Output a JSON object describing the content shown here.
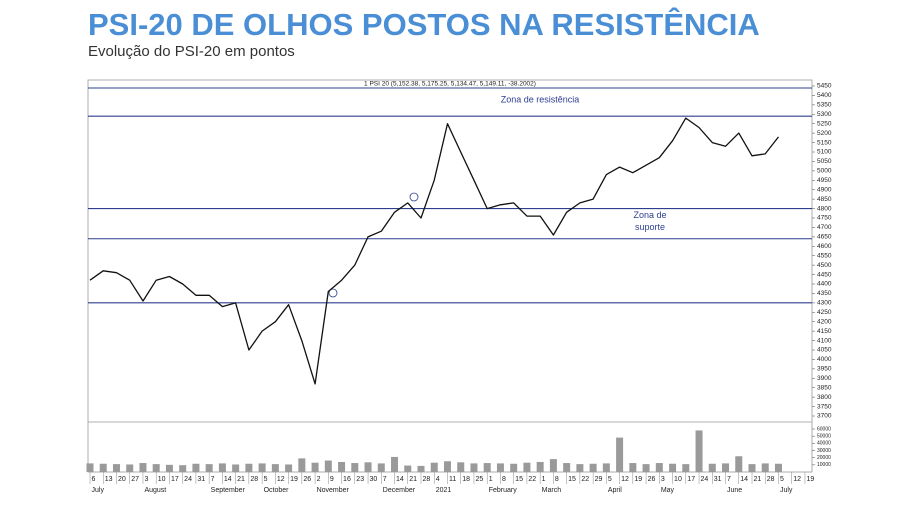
{
  "chart_data": {
    "type": "line",
    "title": "PSI-20 DE OLHOS POSTOS NA RESISTÊNCIA",
    "subtitle": "Evolução do PSI-20 em pontos",
    "legend_text": "1 PSI 20 (5,152.38, 5,175.25, 5,134.47, 5,149.11, -38.2002)",
    "annotations": [
      {
        "text": [
          "Zona de resistência"
        ],
        "value": 5290
      },
      {
        "text": [
          "Zona de",
          "suporte"
        ],
        "value": 4800
      }
    ],
    "levels": [
      5290,
      4800,
      4640,
      4300
    ],
    "level_color": "#2e3f8f",
    "categories": [
      "6",
      "13",
      "20",
      "27",
      "3",
      "10",
      "17",
      "24",
      "31",
      "7",
      "14",
      "21",
      "28",
      "5",
      "12",
      "19",
      "26",
      "2",
      "9",
      "16",
      "23",
      "30",
      "7",
      "14",
      "21",
      "28",
      "4",
      "11",
      "18",
      "25",
      "1",
      "8",
      "15",
      "22",
      "1",
      "8",
      "15",
      "22",
      "29",
      "5",
      "12",
      "19",
      "26",
      "3",
      "10",
      "17",
      "24",
      "31",
      "7",
      "14",
      "21",
      "28",
      "5",
      "12",
      "19"
    ],
    "month_labels": [
      "July",
      null,
      null,
      null,
      "August",
      null,
      null,
      null,
      null,
      "September",
      null,
      null,
      null,
      "October",
      null,
      null,
      null,
      "November",
      null,
      null,
      null,
      null,
      "December",
      null,
      null,
      null,
      "2021",
      null,
      null,
      null,
      "February",
      null,
      null,
      null,
      "March",
      null,
      null,
      null,
      null,
      "April",
      null,
      null,
      null,
      "May",
      null,
      null,
      null,
      null,
      "June",
      null,
      null,
      null,
      "July",
      null,
      null
    ],
    "series": [
      {
        "name": "PSI 20",
        "color": "#111111",
        "values": [
          4420,
          4470,
          4460,
          4420,
          4310,
          4420,
          4440,
          4400,
          4340,
          4340,
          4280,
          4300,
          4050,
          4150,
          4200,
          4290,
          4100,
          3870,
          4360,
          4420,
          4500,
          4650,
          4680,
          4780,
          4830,
          4750,
          4950,
          5250,
          5100,
          4950,
          4800,
          4820,
          4830,
          4760,
          4760,
          4660,
          4780,
          4830,
          4850,
          4980,
          5020,
          4990,
          5030,
          5070,
          5160,
          5280,
          5230,
          5150,
          5130,
          5200,
          5080,
          5090,
          5180,
          null,
          null
        ]
      },
      {
        "name": "Volume",
        "type": "bar",
        "axis": "y2",
        "color": "#9a9a9a",
        "values": [
          12000,
          11500,
          11000,
          10500,
          12500,
          11000,
          10000,
          9500,
          11500,
          11000,
          12000,
          10500,
          11500,
          12000,
          11000,
          10500,
          19000,
          13000,
          16000,
          14000,
          12500,
          13500,
          12000,
          21000,
          9000,
          8500,
          13000,
          15000,
          13500,
          12000,
          12500,
          12000,
          11500,
          13000,
          14000,
          18000,
          12500,
          11000,
          11500,
          12000,
          48000,
          12500,
          11000,
          12500,
          11500,
          11000,
          58000,
          11500,
          12000,
          22000,
          11000,
          12000,
          11500,
          null,
          null
        ]
      }
    ],
    "ylim": [
      3700,
      5450
    ],
    "yticks": [
      3700,
      3750,
      3800,
      3850,
      3900,
      3950,
      4000,
      4050,
      4100,
      4150,
      4200,
      4250,
      4300,
      4350,
      4400,
      4450,
      4500,
      4550,
      4600,
      4650,
      4700,
      4750,
      4800,
      4850,
      4900,
      4950,
      5000,
      5050,
      5100,
      5150,
      5200,
      5250,
      5300,
      5350,
      5400,
      5450
    ],
    "y2lim": [
      0,
      60000
    ],
    "y2ticks": [
      10000,
      20000,
      30000,
      40000,
      50000,
      60000
    ]
  }
}
